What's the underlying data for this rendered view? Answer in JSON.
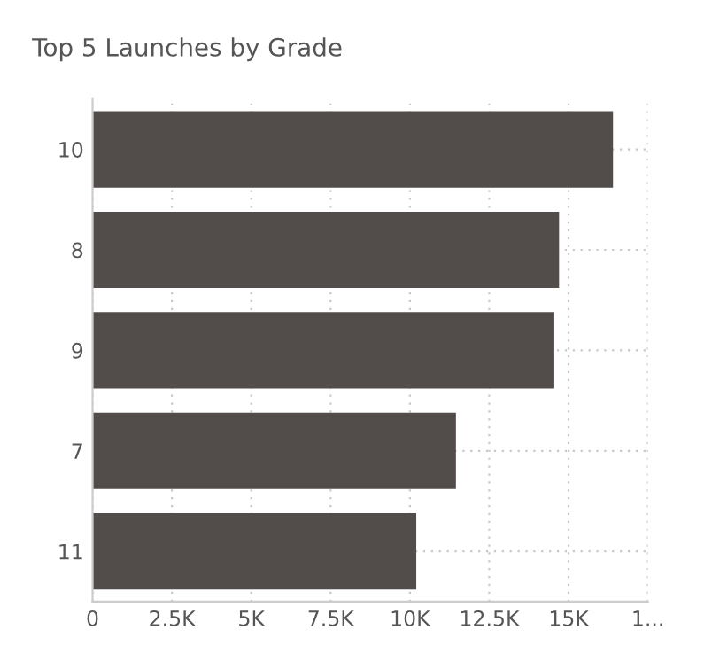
{
  "chart_data": {
    "type": "bar",
    "orientation": "horizontal",
    "title": "Top 5 Launches by Grade",
    "categories": [
      "10",
      "8",
      "9",
      "7",
      "11"
    ],
    "values": [
      16400,
      14700,
      14550,
      11450,
      10200
    ],
    "color": "#524c4b",
    "xlim": [
      0,
      17500
    ],
    "xticks": [
      0,
      {
        "value": 2500,
        "label": "2.5K"
      },
      {
        "value": 5000,
        "label": "5K"
      },
      {
        "value": 7500,
        "label": "7.5K"
      },
      {
        "value": 10000,
        "label": "10K"
      },
      {
        "value": 12500,
        "label": "12.5K"
      },
      {
        "value": 15000,
        "label": "15K"
      },
      {
        "value": 17500,
        "label": "1..."
      }
    ],
    "grid": true
  }
}
